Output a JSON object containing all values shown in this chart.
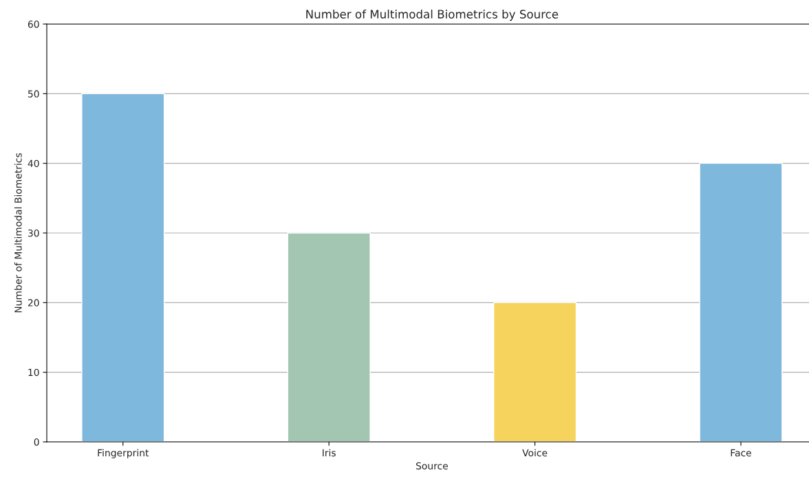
{
  "chart_data": {
    "type": "bar",
    "title": "Number of Multimodal Biometrics by Source",
    "xlabel": "Source",
    "ylabel": "Number of Multimodal Biometrics",
    "categories": [
      "Fingerprint",
      "Iris",
      "Voice",
      "Face"
    ],
    "values": [
      50,
      30,
      20,
      40
    ],
    "colors": [
      "#7eb8dd",
      "#a2c6b1",
      "#f6d35c",
      "#7eb8dd"
    ],
    "ylim": [
      0,
      60
    ],
    "yticks": [
      0,
      10,
      20,
      30,
      40,
      50,
      60
    ],
    "grid": "y"
  }
}
